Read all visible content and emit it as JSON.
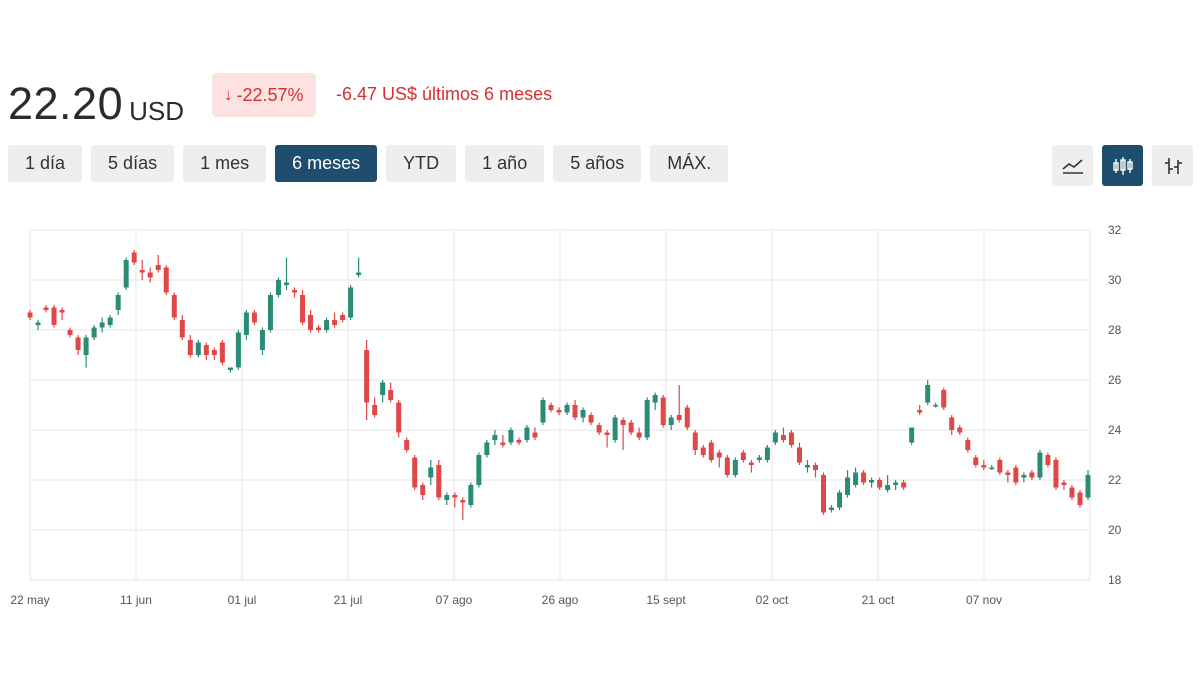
{
  "quote": {
    "price": "22.20",
    "currency": "USD",
    "change_percent": "-22.57%",
    "change_text": "-6.47 US$ últimos 6 meses",
    "direction_icon": "arrow-down-icon",
    "negative_color": "#d62f2f"
  },
  "range_tabs": [
    {
      "label": "1 día",
      "active": false
    },
    {
      "label": "5 días",
      "active": false
    },
    {
      "label": "1 mes",
      "active": false
    },
    {
      "label": "6 meses",
      "active": true
    },
    {
      "label": "YTD",
      "active": false
    },
    {
      "label": "1 año",
      "active": false
    },
    {
      "label": "5 años",
      "active": false
    },
    {
      "label": "MÁX.",
      "active": false
    }
  ],
  "chart_types": [
    {
      "icon": "line-chart-icon",
      "active": false
    },
    {
      "icon": "candlestick-icon",
      "active": true
    },
    {
      "icon": "ohlc-bars-icon",
      "active": false
    }
  ],
  "chart_data": {
    "type": "candlestick",
    "title": "",
    "xlabel": "",
    "ylabel": "",
    "ylim": [
      18,
      32
    ],
    "y_ticks": [
      18,
      20,
      22,
      24,
      26,
      28,
      30,
      32
    ],
    "x_ticks": [
      "22 may",
      "11 jun",
      "01 jul",
      "21 jul",
      "07 ago",
      "26 ago",
      "15 sept",
      "02 oct",
      "21 oct",
      "07 nov"
    ],
    "grid": true,
    "colors": {
      "up": "#2a8c74",
      "down": "#e04848"
    },
    "candles": [
      [
        28.7,
        28.8,
        28.4,
        28.5
      ],
      [
        28.2,
        28.4,
        28.0,
        28.3
      ],
      [
        28.9,
        29.0,
        28.7,
        28.8
      ],
      [
        28.9,
        29.0,
        28.1,
        28.2
      ],
      [
        28.8,
        28.9,
        28.4,
        28.7
      ],
      [
        28.0,
        28.1,
        27.7,
        27.8
      ],
      [
        27.7,
        27.8,
        27.0,
        27.2
      ],
      [
        27.0,
        27.8,
        26.5,
        27.7
      ],
      [
        27.7,
        28.2,
        27.6,
        28.1
      ],
      [
        28.1,
        28.5,
        27.9,
        28.3
      ],
      [
        28.2,
        28.6,
        28.1,
        28.5
      ],
      [
        28.8,
        29.5,
        28.6,
        29.4
      ],
      [
        29.7,
        30.9,
        29.6,
        30.8
      ],
      [
        31.1,
        31.2,
        30.6,
        30.7
      ],
      [
        30.4,
        30.8,
        30.0,
        30.3
      ],
      [
        30.3,
        30.5,
        29.9,
        30.1
      ],
      [
        30.6,
        31.0,
        30.3,
        30.4
      ],
      [
        30.5,
        30.6,
        29.4,
        29.5
      ],
      [
        29.4,
        29.5,
        28.4,
        28.5
      ],
      [
        28.4,
        28.6,
        27.6,
        27.7
      ],
      [
        27.6,
        27.8,
        26.9,
        27.0
      ],
      [
        27.0,
        27.6,
        26.9,
        27.5
      ],
      [
        27.4,
        27.5,
        26.8,
        27.0
      ],
      [
        27.2,
        27.3,
        26.8,
        27.0
      ],
      [
        27.5,
        27.6,
        26.6,
        26.7
      ],
      [
        26.4,
        26.5,
        26.3,
        26.5
      ],
      [
        26.5,
        28.0,
        26.4,
        27.9
      ],
      [
        27.8,
        28.8,
        27.6,
        28.7
      ],
      [
        28.7,
        28.8,
        28.2,
        28.3
      ],
      [
        27.2,
        28.1,
        27.0,
        28.0
      ],
      [
        28.0,
        29.5,
        27.9,
        29.4
      ],
      [
        29.4,
        30.1,
        29.3,
        30.0
      ],
      [
        29.8,
        30.9,
        29.6,
        29.9
      ],
      [
        29.6,
        29.7,
        29.3,
        29.5
      ],
      [
        29.4,
        29.6,
        28.2,
        28.3
      ],
      [
        28.6,
        28.8,
        27.9,
        28.0
      ],
      [
        28.1,
        28.2,
        27.9,
        28.0
      ],
      [
        28.0,
        28.5,
        27.9,
        28.4
      ],
      [
        28.4,
        28.7,
        28.1,
        28.2
      ],
      [
        28.6,
        28.7,
        28.3,
        28.4
      ],
      [
        28.5,
        29.8,
        28.4,
        29.7
      ],
      [
        30.2,
        30.9,
        30.1,
        30.3
      ],
      [
        27.2,
        27.6,
        24.4,
        25.1
      ],
      [
        25.0,
        25.3,
        24.5,
        24.6
      ],
      [
        25.4,
        26.0,
        25.1,
        25.9
      ],
      [
        25.6,
        25.9,
        25.1,
        25.2
      ],
      [
        25.1,
        25.2,
        23.7,
        23.9
      ],
      [
        23.6,
        23.7,
        23.1,
        23.2
      ],
      [
        22.9,
        23.0,
        21.6,
        21.7
      ],
      [
        21.8,
        21.9,
        21.2,
        21.4
      ],
      [
        22.1,
        22.8,
        21.8,
        22.5
      ],
      [
        22.6,
        22.8,
        21.2,
        21.3
      ],
      [
        21.2,
        21.5,
        21.0,
        21.4
      ],
      [
        21.4,
        21.5,
        20.9,
        21.3
      ],
      [
        21.2,
        21.3,
        20.4,
        21.1
      ],
      [
        21.0,
        21.9,
        20.9,
        21.8
      ],
      [
        21.8,
        23.1,
        21.7,
        23.0
      ],
      [
        23.0,
        23.6,
        22.9,
        23.5
      ],
      [
        23.6,
        24.0,
        23.4,
        23.8
      ],
      [
        23.5,
        23.8,
        23.3,
        23.4
      ],
      [
        23.5,
        24.1,
        23.4,
        24.0
      ],
      [
        23.6,
        23.7,
        23.4,
        23.5
      ],
      [
        23.6,
        24.2,
        23.5,
        24.1
      ],
      [
        23.9,
        24.1,
        23.6,
        23.7
      ],
      [
        24.3,
        25.3,
        24.2,
        25.2
      ],
      [
        25.0,
        25.1,
        24.7,
        24.8
      ],
      [
        24.8,
        24.9,
        24.6,
        24.7
      ],
      [
        24.7,
        25.1,
        24.6,
        25.0
      ],
      [
        25.0,
        25.2,
        24.4,
        24.5
      ],
      [
        24.5,
        24.9,
        24.3,
        24.8
      ],
      [
        24.6,
        24.7,
        24.2,
        24.3
      ],
      [
        24.2,
        24.3,
        23.8,
        23.9
      ],
      [
        23.9,
        24.0,
        23.3,
        23.8
      ],
      [
        23.6,
        24.6,
        23.5,
        24.5
      ],
      [
        24.4,
        24.5,
        23.2,
        24.2
      ],
      [
        24.3,
        24.4,
        23.8,
        23.9
      ],
      [
        23.9,
        24.1,
        23.6,
        23.7
      ],
      [
        23.7,
        25.3,
        23.6,
        25.2
      ],
      [
        25.1,
        25.5,
        24.8,
        25.4
      ],
      [
        25.3,
        25.4,
        24.1,
        24.2
      ],
      [
        24.2,
        24.6,
        24.0,
        24.5
      ],
      [
        24.6,
        25.8,
        24.3,
        24.4
      ],
      [
        24.9,
        25.0,
        24.0,
        24.1
      ],
      [
        23.9,
        24.0,
        23.0,
        23.2
      ],
      [
        23.3,
        23.4,
        22.9,
        23.0
      ],
      [
        23.5,
        23.6,
        22.7,
        22.8
      ],
      [
        23.1,
        23.2,
        22.5,
        22.9
      ],
      [
        22.9,
        23.0,
        22.1,
        22.2
      ],
      [
        22.2,
        22.9,
        22.1,
        22.8
      ],
      [
        23.1,
        23.2,
        22.7,
        22.8
      ],
      [
        22.7,
        22.8,
        22.3,
        22.6
      ],
      [
        22.8,
        23.0,
        22.7,
        22.9
      ],
      [
        22.8,
        23.4,
        22.7,
        23.3
      ],
      [
        23.5,
        24.0,
        23.4,
        23.9
      ],
      [
        23.8,
        24.1,
        23.5,
        23.6
      ],
      [
        23.9,
        24.0,
        23.3,
        23.4
      ],
      [
        23.3,
        23.5,
        22.6,
        22.7
      ],
      [
        22.5,
        22.8,
        22.3,
        22.6
      ],
      [
        22.6,
        22.7,
        22.1,
        22.4
      ],
      [
        22.2,
        22.3,
        20.6,
        20.7
      ],
      [
        20.8,
        21.0,
        20.7,
        20.9
      ],
      [
        20.9,
        21.6,
        20.8,
        21.5
      ],
      [
        21.4,
        22.4,
        21.3,
        22.1
      ],
      [
        21.8,
        22.5,
        21.7,
        22.3
      ],
      [
        22.3,
        22.4,
        21.8,
        21.9
      ],
      [
        21.9,
        22.1,
        21.7,
        22.0
      ],
      [
        22.0,
        22.1,
        21.6,
        21.7
      ],
      [
        21.6,
        22.2,
        21.5,
        21.8
      ],
      [
        21.8,
        22.0,
        21.6,
        21.9
      ],
      [
        21.9,
        22.0,
        21.6,
        21.7
      ],
      [
        23.5,
        24.1,
        23.4,
        24.1
      ],
      [
        24.8,
        25.0,
        24.6,
        24.7
      ],
      [
        25.1,
        26.0,
        25.0,
        25.8
      ],
      [
        25.0,
        25.1,
        24.9,
        25.0
      ],
      [
        25.6,
        25.7,
        24.8,
        24.9
      ],
      [
        24.5,
        24.6,
        23.8,
        24.0
      ],
      [
        24.1,
        24.2,
        23.8,
        23.9
      ],
      [
        23.6,
        23.7,
        23.1,
        23.2
      ],
      [
        22.9,
        23.0,
        22.5,
        22.6
      ],
      [
        22.6,
        22.8,
        22.4,
        22.5
      ],
      [
        22.5,
        22.6,
        22.4,
        22.5
      ],
      [
        22.8,
        22.9,
        22.2,
        22.3
      ],
      [
        22.3,
        22.4,
        21.9,
        22.2
      ],
      [
        22.5,
        22.6,
        21.8,
        21.9
      ],
      [
        22.1,
        22.3,
        21.9,
        22.2
      ],
      [
        22.3,
        22.4,
        22.0,
        22.1
      ],
      [
        22.1,
        23.2,
        22.0,
        23.1
      ],
      [
        23.0,
        23.1,
        22.5,
        22.6
      ],
      [
        22.8,
        22.9,
        21.6,
        21.7
      ],
      [
        21.9,
        22.0,
        21.6,
        21.8
      ],
      [
        21.7,
        21.8,
        21.2,
        21.3
      ],
      [
        21.5,
        21.6,
        20.9,
        21.0
      ],
      [
        21.3,
        22.4,
        21.2,
        22.2
      ]
    ]
  }
}
